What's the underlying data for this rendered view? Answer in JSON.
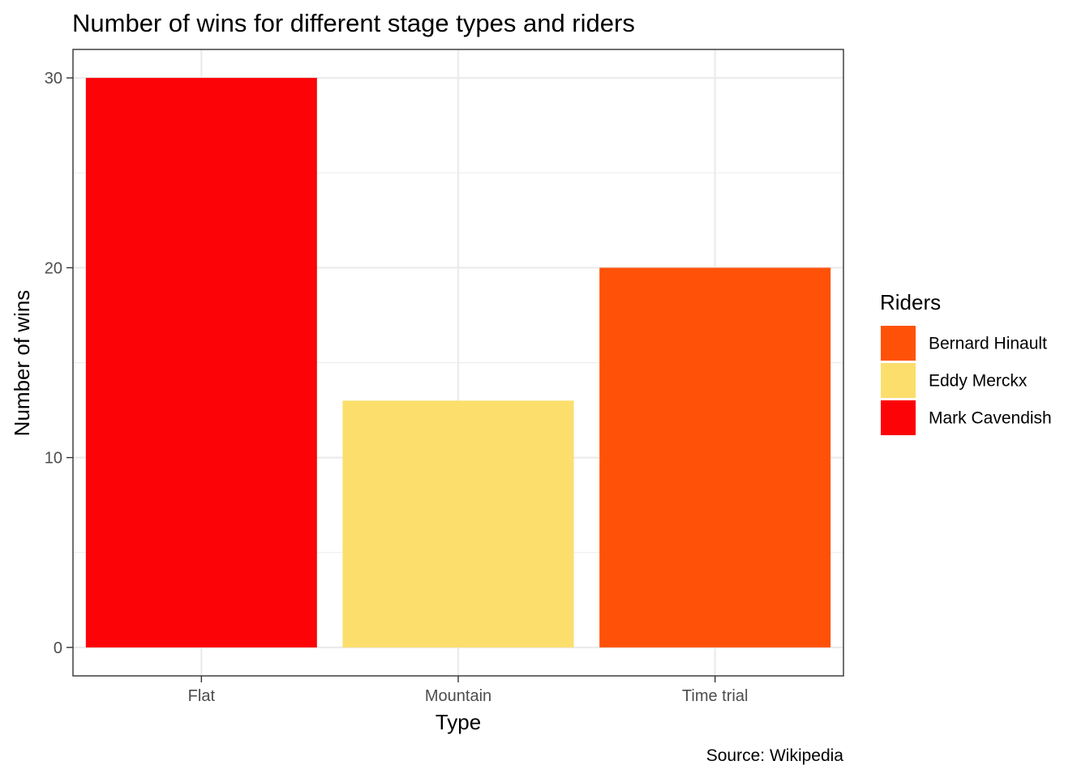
{
  "chart_data": {
    "type": "bar",
    "title": "Number of wins for different stage types and riders",
    "xlabel": "Type",
    "ylabel": "Number of wins",
    "caption": "Source: Wikipedia",
    "categories": [
      "Flat",
      "Mountain",
      "Time trial"
    ],
    "values": [
      30,
      13,
      20
    ],
    "bar_riders": [
      "Mark Cavendish",
      "Eddy Merckx",
      "Bernard Hinault"
    ],
    "ylim": [
      -1.5,
      31.5
    ],
    "yticks": [
      0,
      10,
      20,
      30
    ],
    "grid": true,
    "legend": {
      "title": "Riders",
      "placement": "right",
      "entries": [
        {
          "name": "Bernard Hinault",
          "color": "#FF5208"
        },
        {
          "name": "Eddy Merckx",
          "color": "#FBDE6C"
        },
        {
          "name": "Mark Cavendish",
          "color": "#FB0307"
        }
      ]
    }
  }
}
